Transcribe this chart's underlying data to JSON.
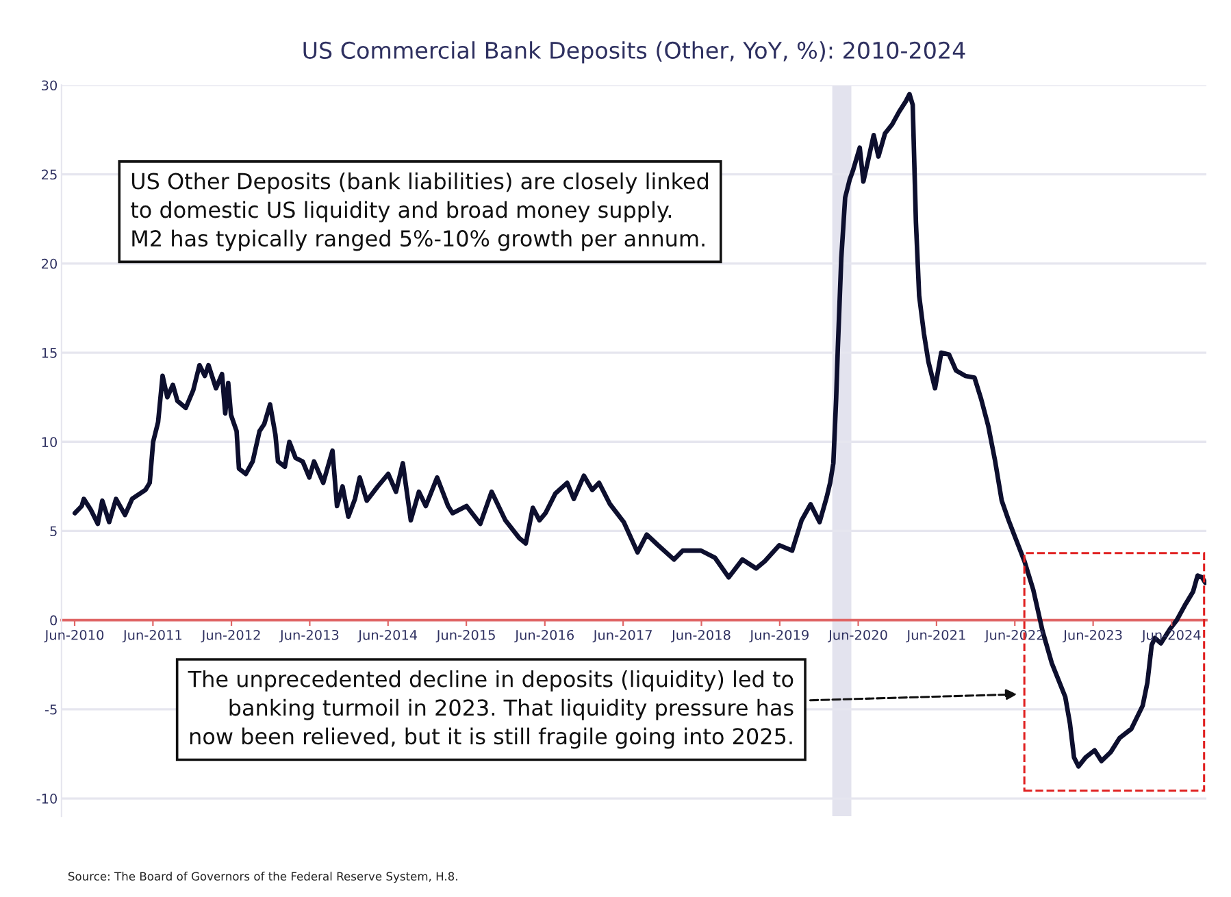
{
  "chart_data": {
    "type": "line",
    "title": "US Commercial Bank Deposits (Other, YoY, %): 2010-2024",
    "x": [
      "2010-06-02",
      "2010-07-04",
      "2010-07-14",
      "2010-08-15",
      "2010-09-17",
      "2010-10-08",
      "2010-11-09",
      "2010-12-11",
      "2011-01-22",
      "2011-02-24",
      "2011-04-27",
      "2011-05-17",
      "2011-06-02",
      "2011-06-25",
      "2011-07-16",
      "2011-08-07",
      "2011-09-02",
      "2011-09-23",
      "2011-11-01",
      "2011-12-06",
      "2012-01-04",
      "2012-01-29",
      "2012-02-15",
      "2012-03-21",
      "2012-04-18",
      "2012-05-03",
      "2012-05-17",
      "2012-05-30",
      "2012-06-25",
      "2012-07-06",
      "2012-08-07",
      "2012-09-08",
      "2012-10-10",
      "2012-11-01",
      "2012-11-28",
      "2012-12-23",
      "2013-01-04",
      "2013-02-05",
      "2013-02-26",
      "2013-03-27",
      "2013-04-29",
      "2013-05-30",
      "2013-06-21",
      "2013-08-03",
      "2013-09-15",
      "2013-10-06",
      "2013-11-01",
      "2013-11-28",
      "2013-12-29",
      "2014-01-20",
      "2014-02-22",
      "2014-04-14",
      "2014-06-02",
      "2014-07-08",
      "2014-08-09",
      "2014-09-15",
      "2014-10-23",
      "2014-11-24",
      "2015-01-16",
      "2015-03-08",
      "2015-03-29",
      "2015-06-02",
      "2015-08-05",
      "2015-09-27",
      "2015-11-30",
      "2016-02-03",
      "2016-03-04",
      "2016-04-06",
      "2016-05-07",
      "2016-06-04",
      "2016-07-20",
      "2016-09-13",
      "2016-10-14",
      "2016-11-30",
      "2017-01-08",
      "2017-02-09",
      "2017-04-01",
      "2017-06-04",
      "2017-08-07",
      "2017-09-19",
      "2017-11-11",
      "2018-01-24",
      "2018-03-06",
      "2018-05-30",
      "2018-08-03",
      "2018-10-06",
      "2018-12-09",
      "2019-02-11",
      "2019-03-23",
      "2019-05-30",
      "2019-07-29",
      "2019-09-11",
      "2019-10-23",
      "2019-12-04",
      "2020-01-06",
      "2020-01-22",
      "2020-02-06",
      "2020-02-19",
      "2020-02-27",
      "2020-03-14",
      "2020-04-01",
      "2020-04-22",
      "2020-05-07",
      "2020-06-08",
      "2020-06-25",
      "2020-07-21",
      "2020-08-12",
      "2020-09-03",
      "2020-10-04",
      "2020-11-06",
      "2020-12-08",
      "2021-01-09",
      "2021-01-26",
      "2021-02-10",
      "2021-02-25",
      "2021-03-12",
      "2021-04-03",
      "2021-04-24",
      "2021-05-25",
      "2021-06-23",
      "2021-07-29",
      "2021-08-31",
      "2021-10-13",
      "2021-11-25",
      "2021-12-26",
      "2022-01-28",
      "2022-02-28",
      "2022-04-01",
      "2022-05-03",
      "2022-06-04",
      "2022-07-16",
      "2022-08-26",
      "2022-10-08",
      "2022-11-20",
      "2023-01-22",
      "2023-02-13",
      "2023-03-04",
      "2023-03-25",
      "2023-04-27",
      "2023-06-08",
      "2023-07-10",
      "2023-08-22",
      "2023-10-03",
      "2023-11-26",
      "2024-01-18",
      "2024-02-09",
      "2024-02-29",
      "2024-03-15",
      "2024-04-12",
      "2024-05-24",
      "2024-06-25",
      "2024-08-05",
      "2024-09-09",
      "2024-09-30",
      "2024-10-21",
      "2024-11-05"
    ],
    "series": [
      {
        "color": "#0d0f2e",
        "values": [
          6.0,
          6.4,
          6.8,
          6.2,
          5.4,
          6.7,
          5.5,
          6.8,
          5.9,
          6.8,
          7.3,
          7.7,
          10.0,
          11.1,
          13.7,
          12.5,
          13.2,
          12.3,
          11.9,
          12.9,
          14.3,
          13.7,
          14.3,
          13.0,
          13.8,
          11.6,
          13.3,
          11.5,
          10.6,
          8.5,
          8.2,
          8.9,
          10.6,
          11.0,
          12.1,
          10.4,
          8.9,
          8.6,
          10.0,
          9.1,
          8.9,
          8.0,
          8.9,
          7.7,
          9.5,
          6.4,
          7.5,
          5.8,
          6.8,
          8.0,
          6.7,
          7.5,
          8.2,
          7.2,
          8.8,
          5.6,
          7.2,
          6.4,
          8.0,
          6.4,
          6.0,
          6.4,
          5.4,
          7.2,
          5.6,
          4.6,
          4.3,
          6.3,
          5.6,
          6.0,
          7.1,
          7.7,
          6.8,
          8.1,
          7.3,
          7.7,
          6.5,
          5.5,
          3.8,
          4.8,
          4.2,
          3.4,
          3.9,
          3.9,
          3.5,
          2.4,
          3.4,
          2.9,
          3.3,
          4.2,
          3.9,
          5.6,
          6.5,
          5.5,
          6.9,
          7.7,
          8.8,
          12.4,
          15.3,
          20.3,
          23.7,
          24.7,
          25.2,
          26.5,
          24.6,
          26.0,
          27.2,
          26.0,
          27.3,
          27.8,
          28.5,
          29.1,
          29.5,
          28.9,
          22.3,
          18.2,
          16.1,
          14.5,
          13.0,
          15.0,
          14.9,
          14.0,
          13.7,
          13.6,
          12.4,
          10.9,
          9.0,
          6.7,
          5.6,
          4.6,
          3.3,
          1.7,
          -0.6,
          -2.4,
          -4.3,
          -5.8,
          -7.7,
          -8.2,
          -7.7,
          -7.3,
          -7.9,
          -7.4,
          -6.6,
          -6.1,
          -4.8,
          -3.5,
          -1.4,
          -1.0,
          -1.3,
          -0.5,
          0.0,
          0.9,
          1.6,
          2.5,
          2.4,
          2.1
        ]
      }
    ],
    "xlim": [
      "2010-04-01",
      "2024-11-10"
    ],
    "xticks": [
      {
        "value": "2010-06-01",
        "label": "Jun-2010"
      },
      {
        "value": "2011-06-01",
        "label": "Jun-2011"
      },
      {
        "value": "2012-06-01",
        "label": "Jun-2012"
      },
      {
        "value": "2013-06-01",
        "label": "Jun-2013"
      },
      {
        "value": "2014-06-01",
        "label": "Jun-2014"
      },
      {
        "value": "2015-06-01",
        "label": "Jun-2015"
      },
      {
        "value": "2016-06-01",
        "label": "Jun-2016"
      },
      {
        "value": "2017-06-01",
        "label": "Jun-2017"
      },
      {
        "value": "2018-06-01",
        "label": "Jun-2018"
      },
      {
        "value": "2019-06-01",
        "label": "Jun-2019"
      },
      {
        "value": "2020-06-01",
        "label": "Jun-2020"
      },
      {
        "value": "2021-06-01",
        "label": "Jun-2021"
      },
      {
        "value": "2022-06-01",
        "label": "Jun-2022"
      },
      {
        "value": "2023-06-01",
        "label": "Jun-2023"
      },
      {
        "value": "2024-06-01",
        "label": "Jun-2024"
      }
    ],
    "ylim": [
      -11,
      30
    ],
    "yticks": [
      -10,
      -5,
      0,
      5,
      10,
      15,
      20,
      25,
      30
    ],
    "grid": "y",
    "bands": [
      {
        "axis": "x",
        "from": "2020-02-01",
        "to": "2020-04-30",
        "color": "#e3e3ee"
      }
    ],
    "annotations": [
      "US Other Deposits (bank liabilities) are closely linked\nto domestic US liquidity and broad money supply.\nM2 has typically ranged 5%-10% growth per annum.",
      "The unprecedented decline in deposits (liquidity) led to\nbanking turmoil in 2023. That liquidity pressure has\nnow been relieved, but it is still fragile going into 2025.",
      "Source: The Board of Governors of the Federal Reserve System, H.8."
    ]
  }
}
